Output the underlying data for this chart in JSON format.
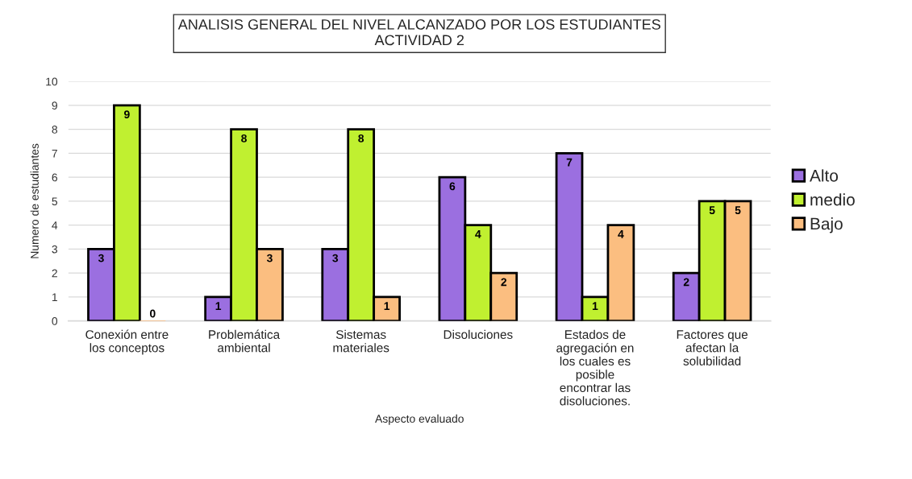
{
  "chart_data": {
    "type": "bar",
    "title": "ANALISIS GENERAL DEL NIVEL ALCANZADO POR LOS ESTUDIANTES\nACTIVIDAD 2",
    "xlabel": "Aspecto evaluado",
    "ylabel": "Numero de estudiantes",
    "categories": [
      "Conexión entre\nlos conceptos",
      "Problemática\nambiental",
      "Sistemas\nmateriales",
      "Disoluciones",
      "Estados de\nagregación en\nlos cuales es\nposible\nencontrar las\ndisoluciones.",
      "Factores que\nafectan la\nsolubilidad"
    ],
    "series": [
      {
        "name": "Alto",
        "color": "#9b6fe0",
        "values": [
          3,
          1,
          3,
          6,
          7,
          2
        ]
      },
      {
        "name": "medio",
        "color": "#c0f030",
        "values": [
          9,
          8,
          8,
          4,
          1,
          5
        ]
      },
      {
        "name": "Bajo",
        "color": "#fbbe80",
        "values": [
          0,
          3,
          1,
          2,
          4,
          5
        ]
      }
    ],
    "ylim": [
      0,
      10
    ],
    "yticks": [
      0,
      1,
      2,
      3,
      4,
      5,
      6,
      7,
      8,
      9,
      10
    ],
    "grid": "y",
    "legend": "right",
    "data_labels": true
  }
}
